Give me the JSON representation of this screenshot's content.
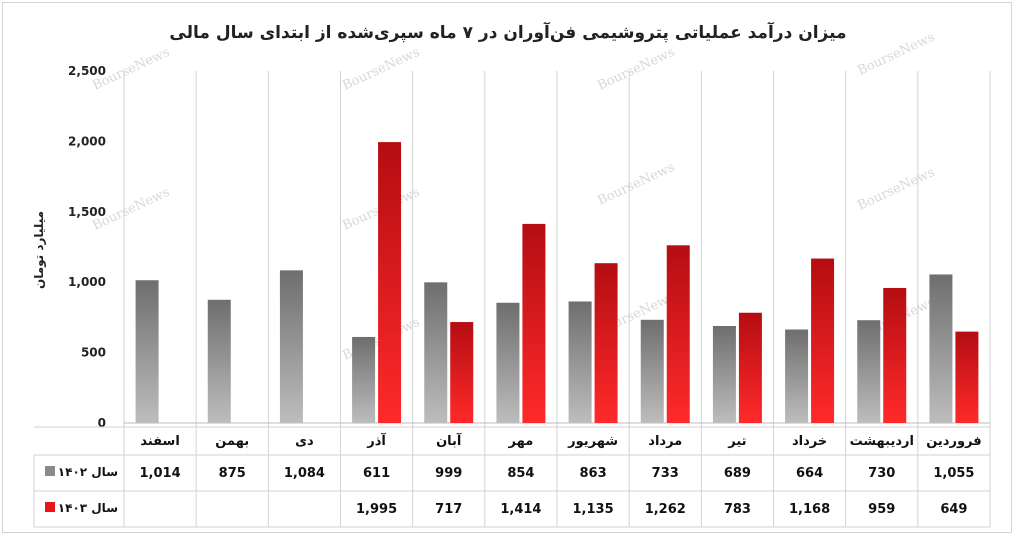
{
  "chart_data": {
    "type": "bar",
    "title": "میزان درآمد عملیاتی پتروشیمی فن‌آوران در ۷ ماه سپری‌شده از ابتدای سال مالی",
    "ylabel": "میلیارد تومان",
    "ylim": [
      0,
      2500
    ],
    "yticks": [
      0,
      500,
      1000,
      1500,
      2000,
      2500
    ],
    "ytick_labels": [
      "0",
      "500",
      "1,000",
      "1,500",
      "2,000",
      "2,500"
    ],
    "grid": "vertical category separators",
    "legend": "data table at bottom-left",
    "categories": [
      "فروردین",
      "اردیبهشت",
      "خرداد",
      "تیر",
      "مرداد",
      "شهریور",
      "مهر",
      "آبان",
      "آذر",
      "دی",
      "بهمن",
      "اسفند"
    ],
    "series": [
      {
        "name": "سال ۱۴۰۲",
        "color": "#8a8a8a",
        "values": [
          1055,
          730,
          664,
          689,
          733,
          863,
          854,
          999,
          611,
          1084,
          875,
          1014
        ],
        "labels": [
          "1,055",
          "730",
          "664",
          "689",
          "733",
          "863",
          "854",
          "999",
          "611",
          "1,084",
          "875",
          "1,014"
        ]
      },
      {
        "name": "سال ۱۴۰۳",
        "color": "#e8141a",
        "values": [
          649,
          959,
          1168,
          783,
          1262,
          1135,
          1414,
          717,
          1995,
          null,
          null,
          null
        ],
        "labels": [
          "649",
          "959",
          "1,168",
          "783",
          "1,262",
          "1,135",
          "1,414",
          "717",
          "1,995",
          "",
          "",
          ""
        ]
      }
    ]
  },
  "watermark": "BourseNews"
}
